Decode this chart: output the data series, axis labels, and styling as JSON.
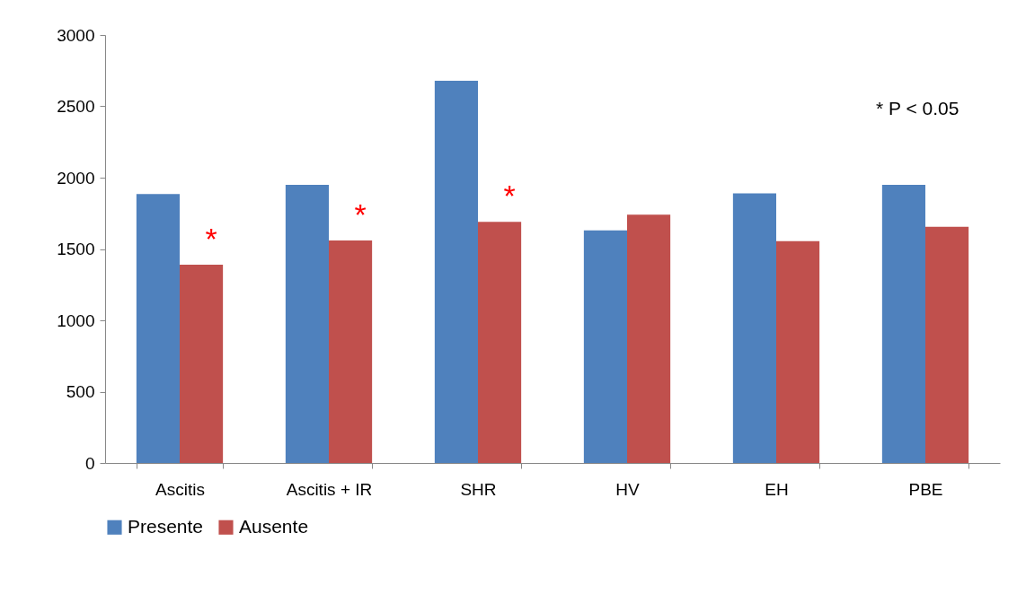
{
  "chart_data": {
    "type": "bar",
    "categories": [
      "Ascitis",
      "Ascitis + IR",
      "SHR",
      "HV",
      "EH",
      "PBE"
    ],
    "series": [
      {
        "name": "Presente",
        "color": "#4f81bd",
        "values": [
          1885,
          1950,
          2680,
          1630,
          1890,
          1950
        ]
      },
      {
        "name": "Ausente",
        "color": "#c0504d",
        "values": [
          1390,
          1560,
          1690,
          1740,
          1555,
          1655
        ]
      }
    ],
    "ylim": [
      0,
      3000
    ],
    "yticks": [
      0,
      500,
      1000,
      1500,
      2000,
      2500,
      3000
    ],
    "grid": false,
    "legend": "bottom",
    "annotations": [
      {
        "text": "*",
        "x": "Ascitis",
        "y": 1390
      },
      {
        "text": "*",
        "x": "Ascitis + IR",
        "y": 1560
      },
      {
        "text": "*",
        "x": "SHR",
        "y": 1690
      },
      "* P < 0.05"
    ]
  }
}
